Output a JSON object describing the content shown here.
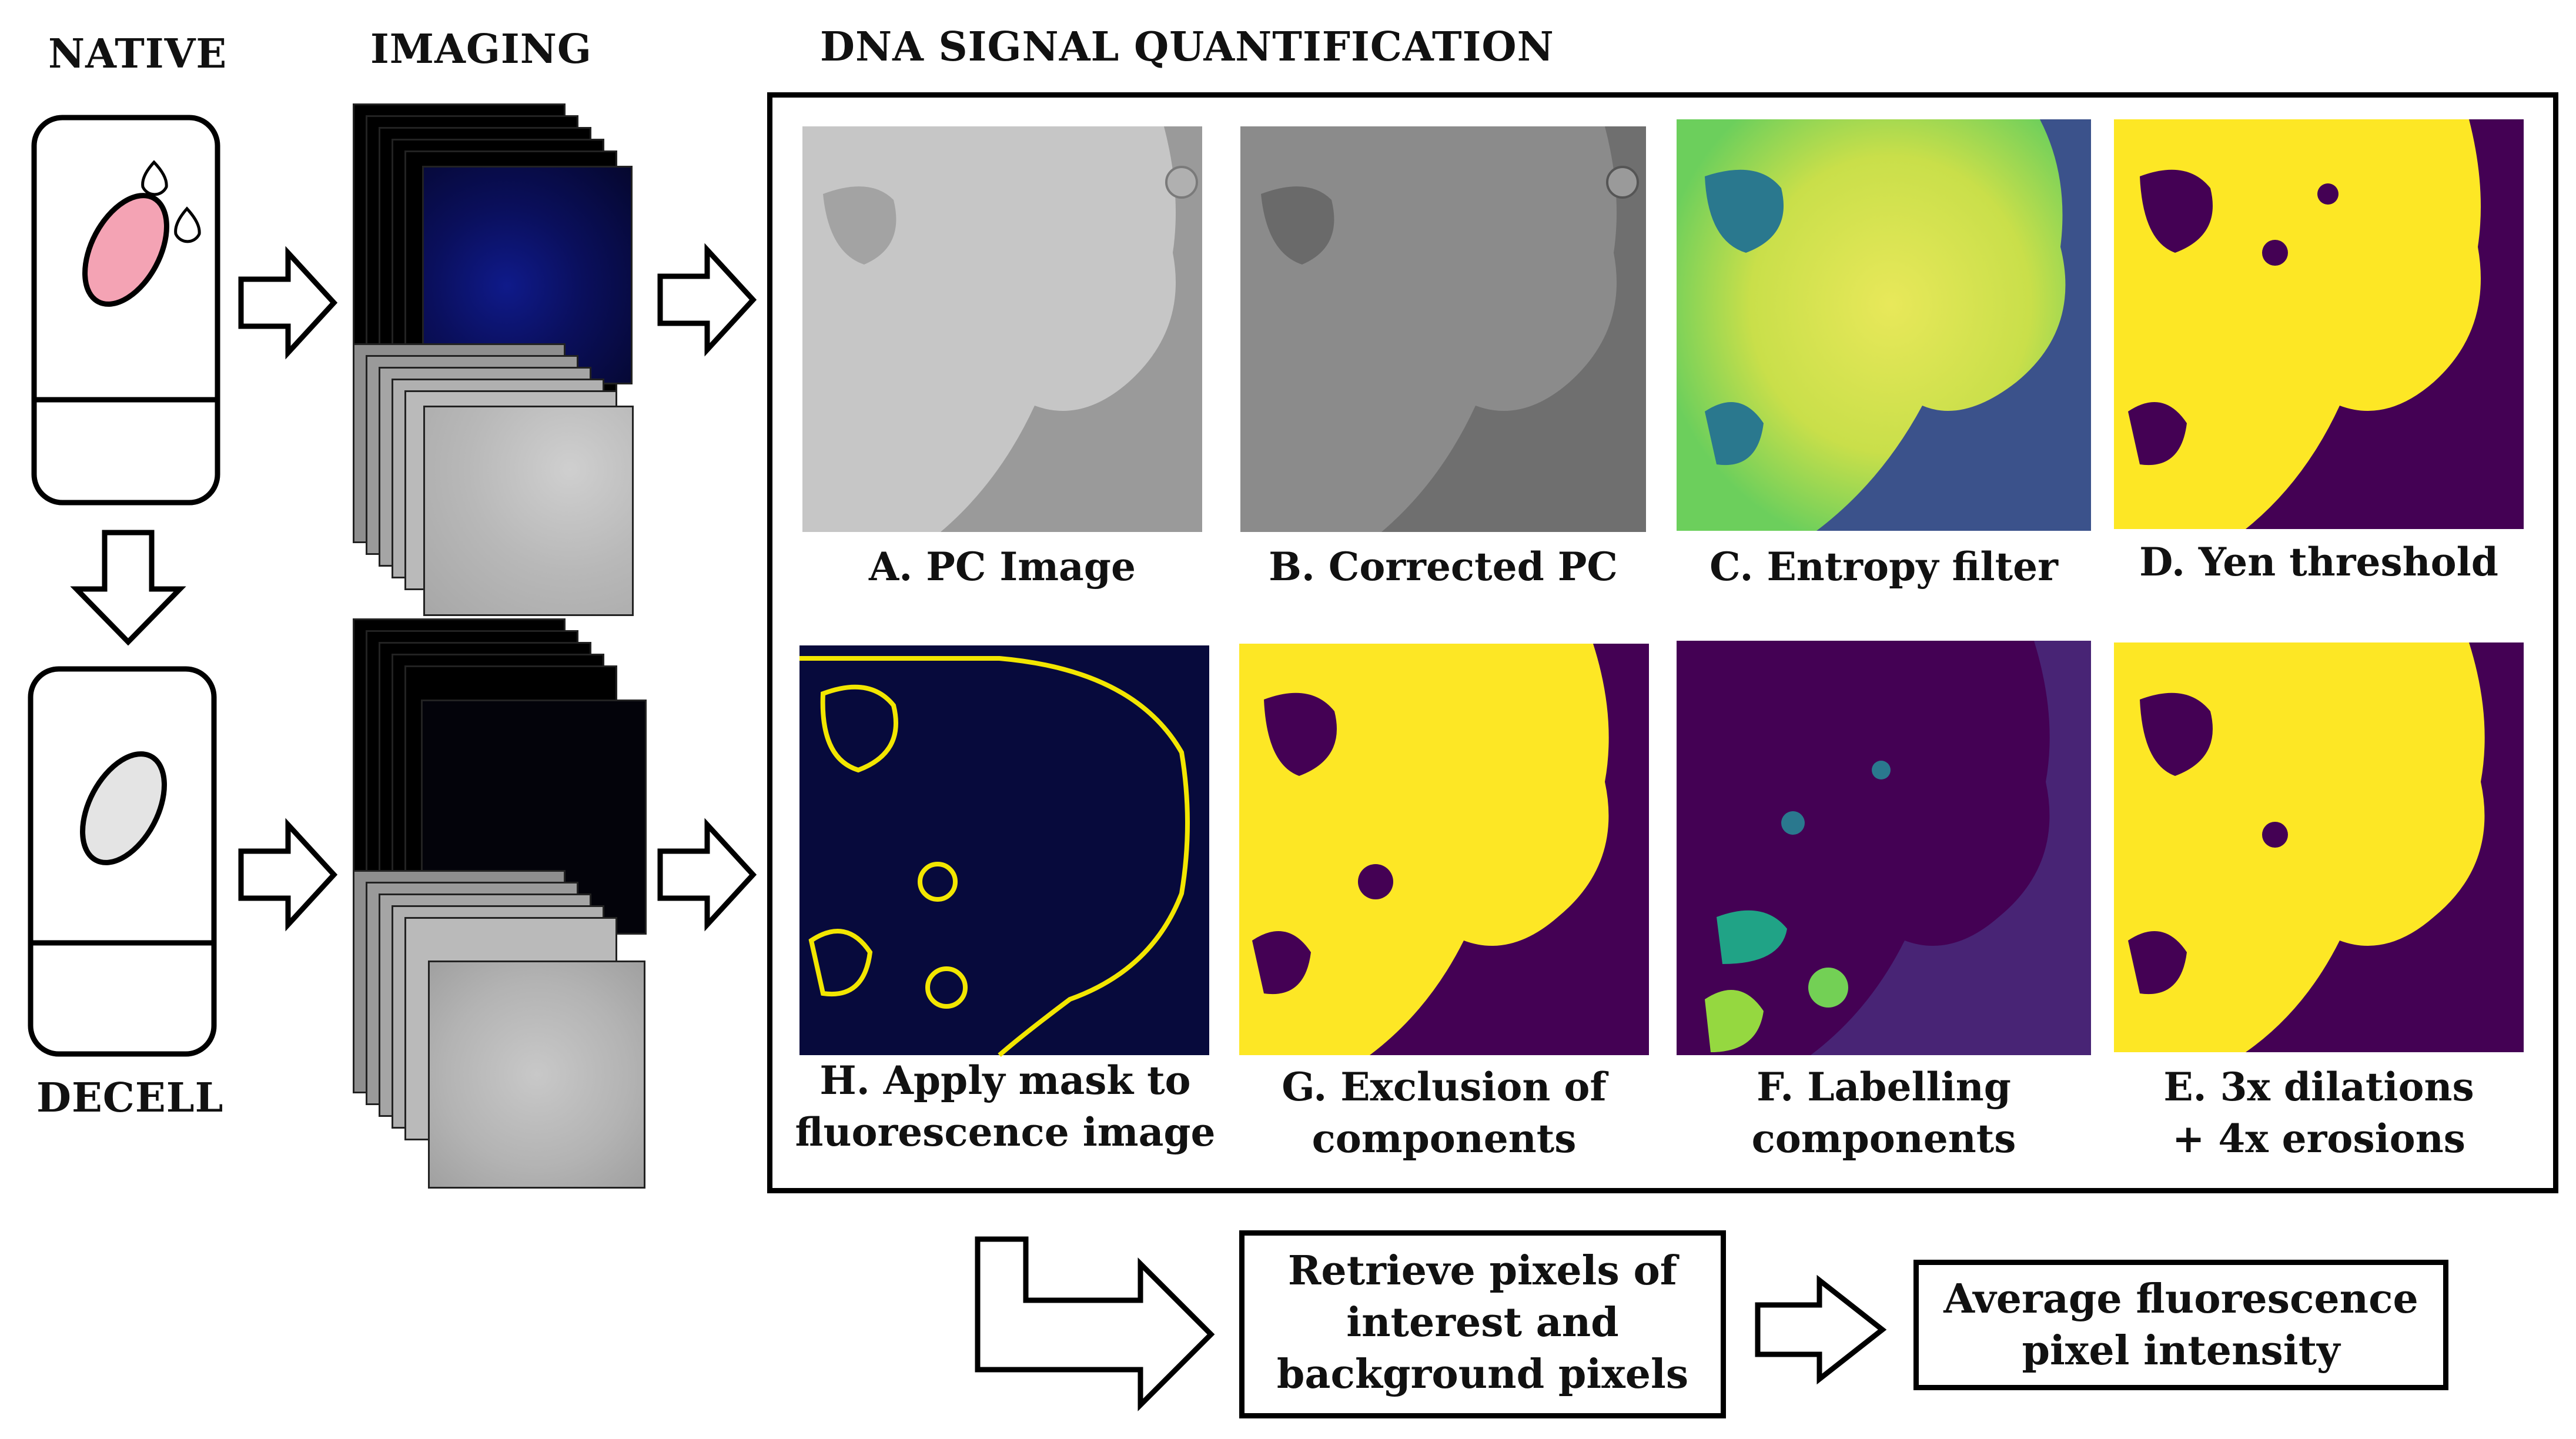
{
  "headers": {
    "native": "NATIVE",
    "imaging": "IMAGING",
    "quantification": "DNA SIGNAL QUANTIFICATION",
    "decell": "DECELL"
  },
  "panels": [
    {
      "id": "A",
      "caption": [
        "A. PC Image"
      ]
    },
    {
      "id": "B",
      "caption": [
        "B. Corrected PC"
      ]
    },
    {
      "id": "C",
      "caption": [
        "C. Entropy filter"
      ]
    },
    {
      "id": "D",
      "caption": [
        "D. Yen threshold"
      ]
    },
    {
      "id": "H",
      "caption": [
        "H. Apply mask to",
        "fluorescence image"
      ]
    },
    {
      "id": "G",
      "caption": [
        "G. Exclusion of",
        "components"
      ]
    },
    {
      "id": "F",
      "caption": [
        "F. Labelling",
        "components"
      ]
    },
    {
      "id": "E",
      "caption": [
        "E. 3x dilations",
        "+ 4x erosions"
      ]
    }
  ],
  "steps": {
    "retrieve": [
      "Retrieve pixels of",
      "interest and",
      "background pixels"
    ],
    "average": [
      "Average fluorescence",
      "pixel intensity"
    ]
  },
  "colors": {
    "tissue_native": "#f4a3b4",
    "tissue_decell": "#e4e4e4",
    "viridis_dark": "#440154",
    "viridis_yellow": "#fde725",
    "fluor_blue": "#0a0f5c",
    "mask_outline": "#f2e600"
  }
}
